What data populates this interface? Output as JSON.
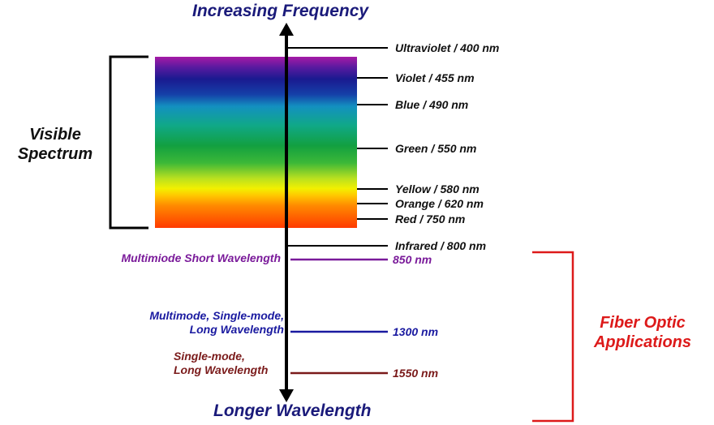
{
  "titles": {
    "top": "Increasing Frequency",
    "bottom": "Longer Wavelength"
  },
  "visible_spectrum": {
    "line1": "Visible",
    "line2": "Spectrum"
  },
  "spectrum_labels": [
    "Ultraviolet / 400 nm",
    "Violet / 455 nm",
    "Blue / 490 nm",
    "Green / 550 nm",
    "Yellow / 580 nm",
    "Orange / 620 nm",
    "Red /  750 nm",
    "Infrared / 800 nm"
  ],
  "fiber": {
    "short": {
      "desc": "Multimiode Short Wavelength",
      "value": "850 nm",
      "color": "#7a1a9a"
    },
    "mm_sm": {
      "desc_line1": "Multimode, Single-mode,",
      "desc_line2": "Long Wavelength",
      "value": "1300 nm",
      "color": "#1a1aa0"
    },
    "sm": {
      "desc_line1": "Single-mode,",
      "desc_line2": "Long Wavelength",
      "value": "1550 nm",
      "color": "#7a1a1a"
    }
  },
  "fiber_optic_apps": {
    "line1": "Fiber Optic",
    "line2": "Applications",
    "color": "#dd1a1a"
  },
  "colors": {
    "title": "#1a1a7a",
    "axis": "#000000"
  }
}
